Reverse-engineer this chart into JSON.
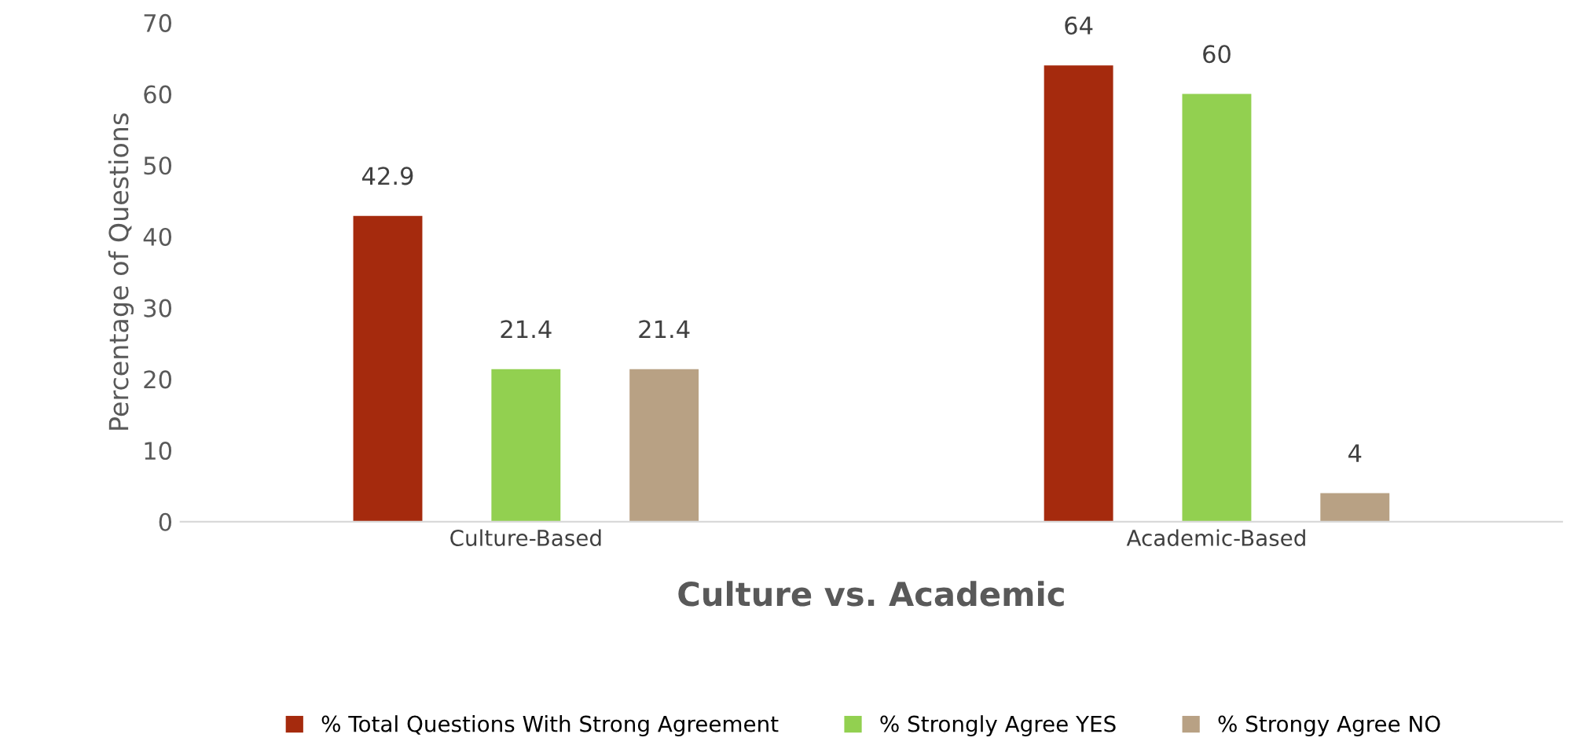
{
  "chart_data": {
    "type": "bar",
    "xlabel": "Culture vs. Academic",
    "ylabel": "Percentage of Questions",
    "categories": [
      "Culture-Based",
      "Academic-Based"
    ],
    "series": [
      {
        "name": "% Total Questions With Strong Agreement",
        "color": "#a52a0d",
        "values": [
          42.9,
          64
        ]
      },
      {
        "name": "% Strongly Agree YES",
        "color": "#92d050",
        "values": [
          21.4,
          60
        ]
      },
      {
        "name": "% Strongy Agree NO",
        "color": "#b8a184",
        "values": [
          21.4,
          4
        ]
      }
    ],
    "ylim": [
      0,
      70
    ],
    "yticks": [
      0,
      10,
      20,
      30,
      40,
      50,
      60,
      70
    ],
    "grid": false,
    "legend": "bottom",
    "data_labels": true
  }
}
